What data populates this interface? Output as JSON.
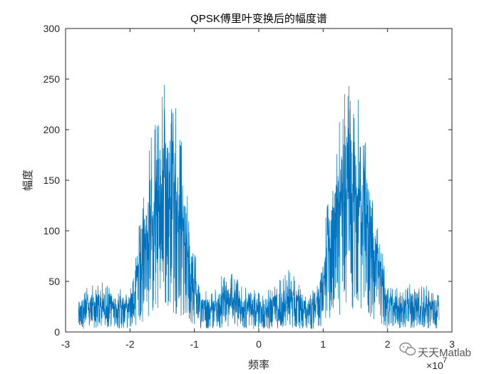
{
  "chart_data": {
    "type": "line",
    "title": "QPSK傅里叶变换后的幅度谱",
    "xlabel": "频率",
    "ylabel": "幅度",
    "x_exponent_label": "×10",
    "x_exponent_power": "7",
    "xlim": [
      -3,
      3
    ],
    "ylim": [
      0,
      300
    ],
    "x_scale_note": "x values in units of 10^7",
    "x_ticks": [
      "-3",
      "-2",
      "-1",
      "0",
      "1",
      "2",
      "3"
    ],
    "y_ticks": [
      "0",
      "50",
      "100",
      "150",
      "200",
      "250",
      "300"
    ],
    "grid": false,
    "series_color": "#0072BD",
    "x_range": [
      -2.8,
      2.8
    ],
    "envelope": {
      "description": "spectrum peak envelope (data units)",
      "x": [
        -2.8,
        -2.5,
        -2.2,
        -2.0,
        -1.85,
        -1.7,
        -1.55,
        -1.4,
        -1.3,
        -1.2,
        -1.05,
        -0.9,
        -0.7,
        -0.5,
        -0.2,
        0,
        0.2,
        0.5,
        0.7,
        0.9,
        1.05,
        1.2,
        1.3,
        1.4,
        1.55,
        1.7,
        1.85,
        2.0,
        2.2,
        2.5,
        2.8
      ],
      "peak": [
        40,
        50,
        45,
        45,
        110,
        190,
        230,
        265,
        230,
        190,
        120,
        45,
        40,
        65,
        45,
        40,
        45,
        65,
        40,
        45,
        120,
        190,
        230,
        265,
        230,
        190,
        110,
        45,
        45,
        50,
        40
      ],
      "mean": [
        20,
        24,
        22,
        25,
        55,
        95,
        120,
        130,
        120,
        95,
        55,
        22,
        20,
        28,
        20,
        18,
        20,
        28,
        20,
        22,
        55,
        95,
        120,
        130,
        120,
        95,
        55,
        25,
        22,
        24,
        20
      ]
    }
  },
  "watermark": {
    "text": "天天Matlab",
    "icon": "wechat-icon"
  }
}
